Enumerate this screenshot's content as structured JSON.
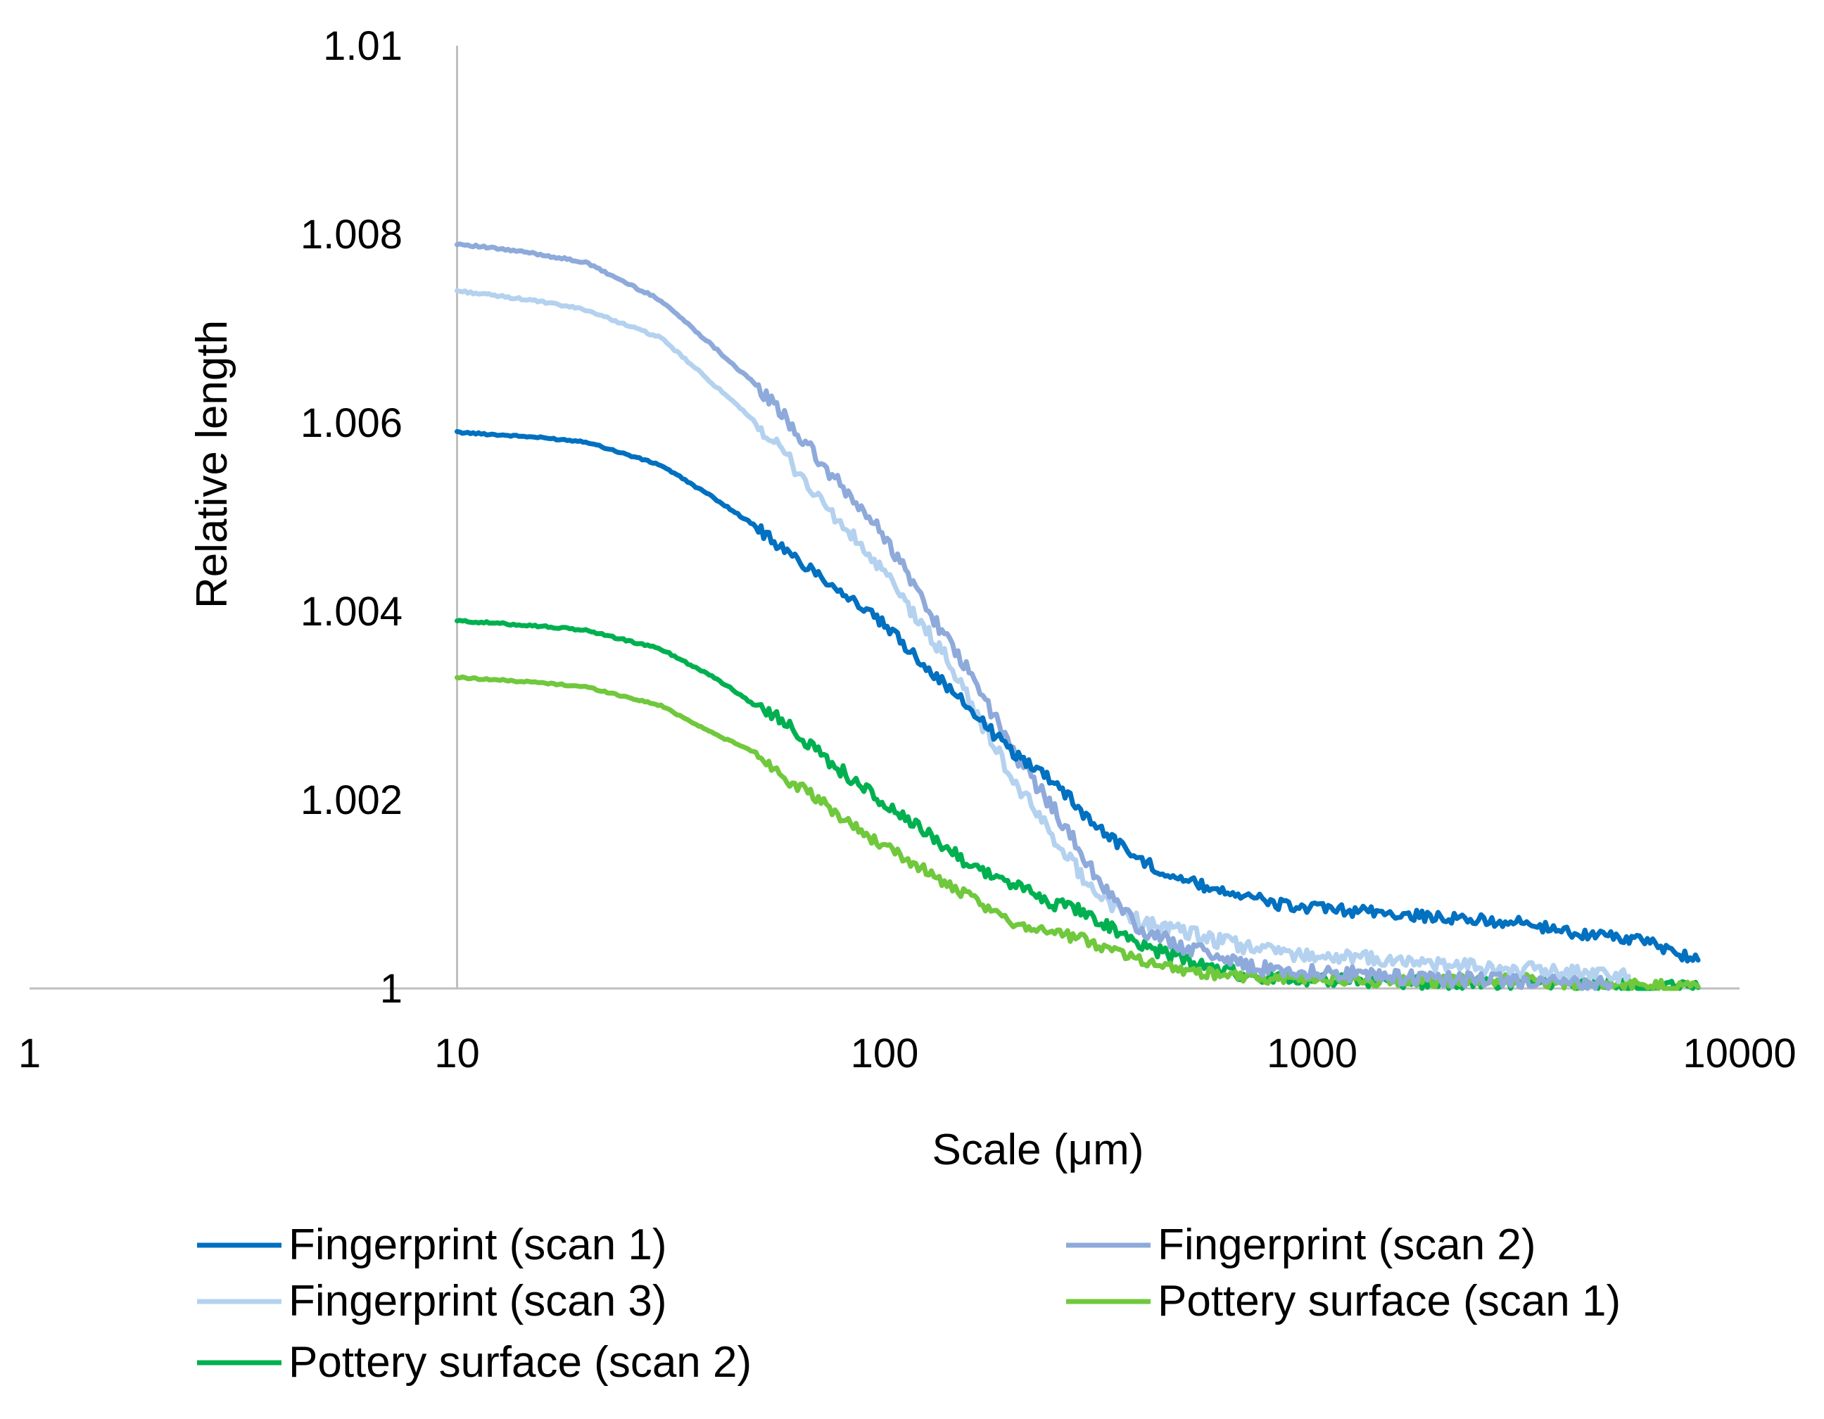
{
  "chart_data": {
    "type": "line",
    "title": "",
    "xlabel": "Scale (μm)",
    "ylabel": "Relative length",
    "x_scale": "log",
    "xlim": [
      1,
      10000
    ],
    "ylim": [
      1,
      1.01
    ],
    "x_ticks": [
      "1",
      "10",
      "100",
      "1000",
      "10000"
    ],
    "y_ticks": [
      "1",
      "1.002",
      "1.004",
      "1.006",
      "1.008",
      "1.01"
    ],
    "grid": false,
    "legend_position": "bottom",
    "series": [
      {
        "name": "Fingerprint (scan 1)",
        "color": "#0070c0",
        "points": [
          [
            10,
            1.0059
          ],
          [
            15,
            1.00585
          ],
          [
            20,
            1.0058
          ],
          [
            30,
            1.00555
          ],
          [
            40,
            1.0052
          ],
          [
            50,
            1.0049
          ],
          [
            60,
            1.0046
          ],
          [
            70,
            1.0044
          ],
          [
            80,
            1.0042
          ],
          [
            100,
            1.00385
          ],
          [
            120,
            1.0035
          ],
          [
            140,
            1.0032
          ],
          [
            160,
            1.00295
          ],
          [
            180,
            1.0027
          ],
          [
            200,
            1.0025
          ],
          [
            250,
            1.0022
          ],
          [
            300,
            1.0018
          ],
          [
            350,
            1.00155
          ],
          [
            400,
            1.00135
          ],
          [
            500,
            1.00115
          ],
          [
            600,
            1.00105
          ],
          [
            700,
            1.001
          ],
          [
            800,
            1.0009
          ],
          [
            1000,
            1.00085
          ],
          [
            1500,
            1.0008
          ],
          [
            2000,
            1.00075
          ],
          [
            3000,
            1.0007
          ],
          [
            4000,
            1.0006
          ],
          [
            5000,
            1.00055
          ],
          [
            6000,
            1.0005
          ],
          [
            8000,
            1.0003
          ]
        ]
      },
      {
        "name": "Fingerprint (scan 2)",
        "color": "#8eaadb",
        "points": [
          [
            10,
            1.0079
          ],
          [
            15,
            1.0078
          ],
          [
            20,
            1.0077
          ],
          [
            30,
            1.0073
          ],
          [
            40,
            1.0068
          ],
          [
            50,
            1.0064
          ],
          [
            60,
            1.006
          ],
          [
            70,
            1.0056
          ],
          [
            80,
            1.0053
          ],
          [
            100,
            1.0048
          ],
          [
            120,
            1.0042
          ],
          [
            140,
            1.0037
          ],
          [
            160,
            1.0033
          ],
          [
            180,
            1.0029
          ],
          [
            200,
            1.0025
          ],
          [
            250,
            1.0019
          ],
          [
            300,
            1.0013
          ],
          [
            350,
            1.0009
          ],
          [
            400,
            1.0006
          ],
          [
            500,
            1.00045
          ],
          [
            600,
            1.00035
          ],
          [
            700,
            1.00025
          ],
          [
            800,
            1.0002
          ],
          [
            1000,
            1.00018
          ],
          [
            1500,
            1.00013
          ],
          [
            2000,
            1.0001
          ],
          [
            3000,
            1.00008
          ],
          [
            4000,
            1.00005
          ],
          [
            5000,
            1.00004
          ]
        ]
      },
      {
        "name": "Fingerprint (scan 3)",
        "color": "#b4d2ef",
        "points": [
          [
            10,
            1.0074
          ],
          [
            15,
            1.0073
          ],
          [
            20,
            1.0072
          ],
          [
            30,
            1.0069
          ],
          [
            40,
            1.0064
          ],
          [
            50,
            1.006
          ],
          [
            60,
            1.0056
          ],
          [
            70,
            1.0052
          ],
          [
            80,
            1.0049
          ],
          [
            100,
            1.0044
          ],
          [
            120,
            1.0039
          ],
          [
            140,
            1.0035
          ],
          [
            160,
            1.003
          ],
          [
            180,
            1.0026
          ],
          [
            200,
            1.0022
          ],
          [
            250,
            1.0016
          ],
          [
            300,
            1.0011
          ],
          [
            350,
            1.00085
          ],
          [
            400,
            1.0007
          ],
          [
            500,
            1.0006
          ],
          [
            600,
            1.0005
          ],
          [
            700,
            1.00045
          ],
          [
            800,
            1.0004
          ],
          [
            1000,
            1.00035
          ],
          [
            1500,
            1.0003
          ],
          [
            2000,
            1.00025
          ],
          [
            3000,
            1.0002
          ],
          [
            4000,
            1.00018
          ],
          [
            5000,
            1.00015
          ],
          [
            5500,
            1.00013
          ]
        ]
      },
      {
        "name": "Pottery surface (scan 1)",
        "color": "#70c83c",
        "points": [
          [
            10,
            1.0033
          ],
          [
            15,
            1.00325
          ],
          [
            20,
            1.0032
          ],
          [
            30,
            1.003
          ],
          [
            40,
            1.0027
          ],
          [
            50,
            1.0025
          ],
          [
            60,
            1.0022
          ],
          [
            70,
            1.002
          ],
          [
            80,
            1.0018
          ],
          [
            100,
            1.0015
          ],
          [
            120,
            1.0013
          ],
          [
            140,
            1.0011
          ],
          [
            160,
            1.00095
          ],
          [
            180,
            1.0008
          ],
          [
            200,
            1.0007
          ],
          [
            250,
            1.0006
          ],
          [
            300,
            1.0005
          ],
          [
            350,
            1.0004
          ],
          [
            400,
            1.0003
          ],
          [
            500,
            1.0002
          ],
          [
            600,
            1.00015
          ],
          [
            700,
            1.00012
          ],
          [
            800,
            1.0001
          ],
          [
            1000,
            1.0001
          ],
          [
            1500,
            1.00008
          ],
          [
            2000,
            1.00008
          ],
          [
            3000,
            1.0001
          ],
          [
            4000,
            1.00005
          ],
          [
            5000,
            1.00004
          ],
          [
            8000,
            1.00002
          ]
        ]
      },
      {
        "name": "Pottery surface (scan 2)",
        "color": "#00b050",
        "points": [
          [
            10,
            1.0039
          ],
          [
            15,
            1.00385
          ],
          [
            20,
            1.0038
          ],
          [
            30,
            1.0036
          ],
          [
            40,
            1.0033
          ],
          [
            50,
            1.003
          ],
          [
            60,
            1.0028
          ],
          [
            70,
            1.0025
          ],
          [
            80,
            1.0023
          ],
          [
            100,
            1.00195
          ],
          [
            120,
            1.0017
          ],
          [
            140,
            1.0015
          ],
          [
            160,
            1.0013
          ],
          [
            180,
            1.0012
          ],
          [
            200,
            1.0011
          ],
          [
            250,
            1.0009
          ],
          [
            300,
            1.0008
          ],
          [
            350,
            1.0006
          ],
          [
            400,
            1.00045
          ],
          [
            500,
            1.0003
          ],
          [
            600,
            1.0002
          ],
          [
            700,
            1.00015
          ],
          [
            800,
            1.00012
          ],
          [
            1000,
            1.0001
          ],
          [
            1500,
            1.00008
          ],
          [
            2000,
            1.00006
          ],
          [
            3000,
            1.00005
          ],
          [
            4000,
            1.00004
          ],
          [
            5000,
            1.00003
          ],
          [
            8000,
            1.00001
          ]
        ]
      }
    ]
  }
}
